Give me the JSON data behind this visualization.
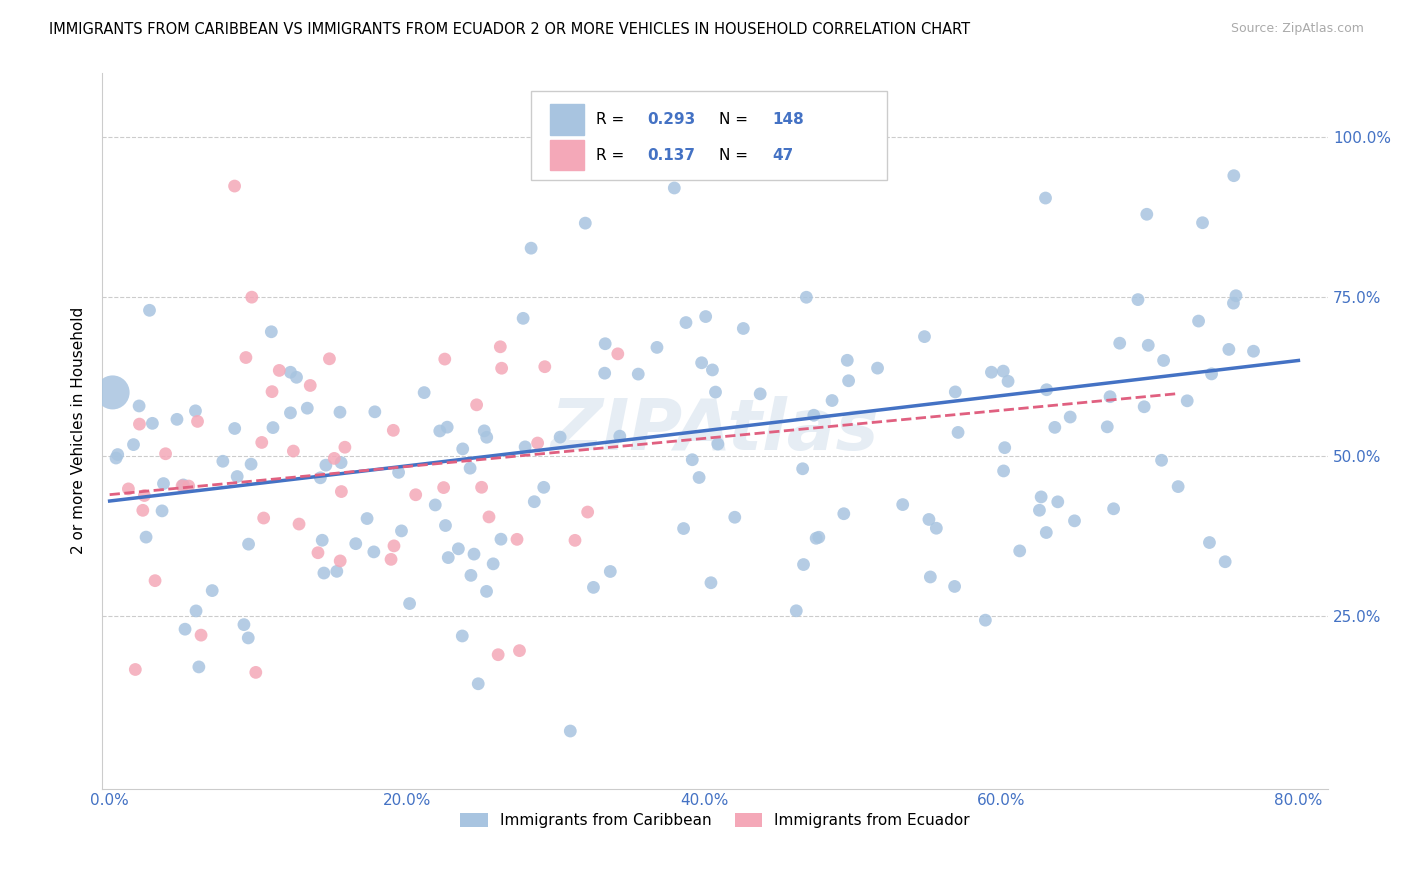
{
  "title": "IMMIGRANTS FROM CARIBBEAN VS IMMIGRANTS FROM ECUADOR 2 OR MORE VEHICLES IN HOUSEHOLD CORRELATION CHART",
  "source": "Source: ZipAtlas.com",
  "ylabel": "2 or more Vehicles in Household",
  "series1_color": "#a8c4e0",
  "series2_color": "#f4a8b8",
  "line1_color": "#4472c4",
  "line2_color": "#e06080",
  "R1": 0.293,
  "N1": 148,
  "R2": 0.137,
  "N2": 47,
  "legend_label1": "Immigrants from Caribbean",
  "legend_label2": "Immigrants from Ecuador",
  "watermark": "ZIPAtlas",
  "label_color_blue": "#4472c4",
  "tick_color": "#4472c4",
  "grid_color": "#cccccc",
  "xlim": [
    -0.005,
    0.82
  ],
  "ylim": [
    -0.02,
    1.1
  ]
}
